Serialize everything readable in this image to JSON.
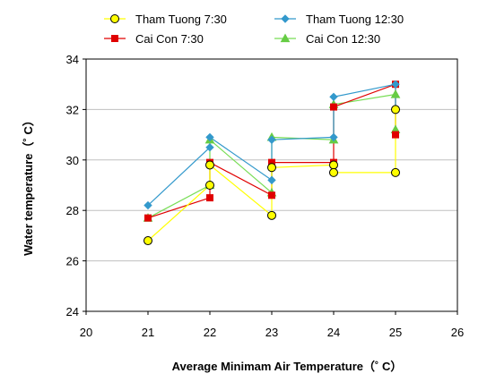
{
  "chart_data": {
    "type": "line",
    "xlabel": "Average Minimam Air Temperature（˚ C）",
    "ylabel": "Water temperature（˚ C）",
    "xlim": [
      20,
      26
    ],
    "ylim": [
      24,
      34
    ],
    "xticks": [
      "20",
      "21",
      "22",
      "23",
      "24",
      "25",
      "26"
    ],
    "yticks": [
      "24",
      "26",
      "28",
      "30",
      "32",
      "34"
    ],
    "grid": "horizontal",
    "legend_position": "top",
    "series": [
      {
        "name": "Tham Tuong  7:30",
        "marker": "circle",
        "color": "#FFFF00",
        "marker_fill": "#FFFF00",
        "marker_stroke": "#000000",
        "points": [
          [
            21,
            26.8
          ],
          [
            22,
            29.0
          ],
          [
            22,
            29.8
          ],
          [
            23,
            27.8
          ],
          [
            23,
            29.7
          ],
          [
            24,
            29.8
          ],
          [
            24,
            29.5
          ],
          [
            25,
            29.5
          ],
          [
            25,
            32.0
          ]
        ]
      },
      {
        "name": "Tham Tuong  12:30",
        "marker": "diamond",
        "color": "#3399CC",
        "marker_fill": "#3399CC",
        "marker_stroke": "#3399CC",
        "points": [
          [
            21,
            28.2
          ],
          [
            22,
            30.5
          ],
          [
            22,
            30.9
          ],
          [
            23,
            29.2
          ],
          [
            23,
            30.8
          ],
          [
            24,
            30.9
          ],
          [
            24,
            32.5
          ],
          [
            25,
            33.0
          ],
          [
            25,
            32.0
          ]
        ]
      },
      {
        "name": "Cai Con  7:30",
        "marker": "square",
        "color": "#E00000",
        "marker_fill": "#E00000",
        "marker_stroke": "#E00000",
        "points": [
          [
            21,
            27.7
          ],
          [
            22,
            28.5
          ],
          [
            22,
            29.9
          ],
          [
            23,
            28.6
          ],
          [
            23,
            29.9
          ],
          [
            24,
            29.9
          ],
          [
            24,
            32.1
          ],
          [
            25,
            33.0
          ],
          [
            25,
            31.0
          ]
        ]
      },
      {
        "name": "Cai Con  12:30",
        "marker": "triangle",
        "color": "#77DD55",
        "marker_fill": "#66CC44",
        "marker_stroke": "#66CC44",
        "points": [
          [
            21,
            27.7
          ],
          [
            22,
            29.0
          ],
          [
            22,
            30.8
          ],
          [
            23,
            28.7
          ],
          [
            23,
            30.9
          ],
          [
            24,
            30.8
          ],
          [
            24,
            32.2
          ],
          [
            25,
            32.6
          ],
          [
            25,
            31.2
          ]
        ]
      }
    ]
  }
}
